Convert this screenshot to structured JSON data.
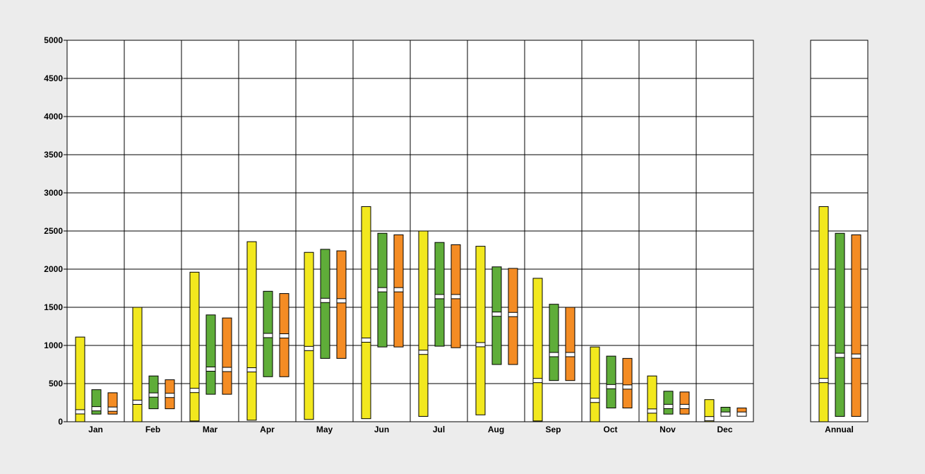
{
  "chart_data": {
    "type": "floating-bar",
    "title": "",
    "xlabel": "",
    "ylabel": "",
    "ylim": [
      0,
      5000
    ],
    "y_ticks": [
      0,
      500,
      1000,
      1500,
      2000,
      2500,
      3000,
      3500,
      4000,
      4500,
      5000
    ],
    "grid": true,
    "legend": "none",
    "series_colors": [
      "#f2e81e",
      "#5fad39",
      "#f48c24"
    ],
    "categories": [
      "Jan",
      "Feb",
      "Mar",
      "Apr",
      "May",
      "Jun",
      "Jul",
      "Aug",
      "Sep",
      "Oct",
      "Nov",
      "Dec"
    ],
    "monthly": [
      {
        "label": "Jan",
        "bars": [
          {
            "min": 0,
            "max": 1110,
            "median": 130
          },
          {
            "min": 100,
            "max": 420,
            "median": 170
          },
          {
            "min": 100,
            "max": 380,
            "median": 165
          }
        ]
      },
      {
        "label": "Feb",
        "bars": [
          {
            "min": 0,
            "max": 1500,
            "median": 255
          },
          {
            "min": 170,
            "max": 600,
            "median": 350
          },
          {
            "min": 170,
            "max": 550,
            "median": 345
          }
        ]
      },
      {
        "label": "Mar",
        "bars": [
          {
            "min": 10,
            "max": 1960,
            "median": 410
          },
          {
            "min": 360,
            "max": 1400,
            "median": 690
          },
          {
            "min": 360,
            "max": 1360,
            "median": 685
          }
        ]
      },
      {
        "label": "Apr",
        "bars": [
          {
            "min": 20,
            "max": 2360,
            "median": 680
          },
          {
            "min": 590,
            "max": 1710,
            "median": 1130
          },
          {
            "min": 590,
            "max": 1680,
            "median": 1125
          }
        ]
      },
      {
        "label": "May",
        "bars": [
          {
            "min": 30,
            "max": 2220,
            "median": 960
          },
          {
            "min": 830,
            "max": 2260,
            "median": 1590
          },
          {
            "min": 830,
            "max": 2240,
            "median": 1585
          }
        ]
      },
      {
        "label": "Jun",
        "bars": [
          {
            "min": 40,
            "max": 2820,
            "median": 1070
          },
          {
            "min": 980,
            "max": 2470,
            "median": 1730
          },
          {
            "min": 980,
            "max": 2450,
            "median": 1730
          }
        ]
      },
      {
        "label": "Jul",
        "bars": [
          {
            "min": 70,
            "max": 2500,
            "median": 910
          },
          {
            "min": 990,
            "max": 2350,
            "median": 1640
          },
          {
            "min": 970,
            "max": 2320,
            "median": 1640
          }
        ]
      },
      {
        "label": "Aug",
        "bars": [
          {
            "min": 90,
            "max": 2300,
            "median": 1010
          },
          {
            "min": 750,
            "max": 2030,
            "median": 1410
          },
          {
            "min": 750,
            "max": 2010,
            "median": 1405
          }
        ]
      },
      {
        "label": "Sep",
        "bars": [
          {
            "min": 10,
            "max": 1880,
            "median": 540
          },
          {
            "min": 540,
            "max": 1540,
            "median": 880
          },
          {
            "min": 540,
            "max": 1500,
            "median": 880
          }
        ]
      },
      {
        "label": "Oct",
        "bars": [
          {
            "min": 0,
            "max": 980,
            "median": 280
          },
          {
            "min": 180,
            "max": 860,
            "median": 460
          },
          {
            "min": 180,
            "max": 830,
            "median": 455
          }
        ]
      },
      {
        "label": "Nov",
        "bars": [
          {
            "min": 0,
            "max": 600,
            "median": 140
          },
          {
            "min": 100,
            "max": 400,
            "median": 200
          },
          {
            "min": 100,
            "max": 390,
            "median": 200
          }
        ]
      },
      {
        "label": "Dec",
        "bars": [
          {
            "min": 0,
            "max": 290,
            "median": 40
          },
          {
            "min": 80,
            "max": 190,
            "median": 100
          },
          {
            "min": 80,
            "max": 180,
            "median": 100
          }
        ]
      }
    ],
    "annual": {
      "label": "Annual",
      "bars": [
        {
          "min": 0,
          "max": 2820,
          "median": 540
        },
        {
          "min": 70,
          "max": 2470,
          "median": 870
        },
        {
          "min": 70,
          "max": 2450,
          "median": 860
        }
      ]
    }
  }
}
